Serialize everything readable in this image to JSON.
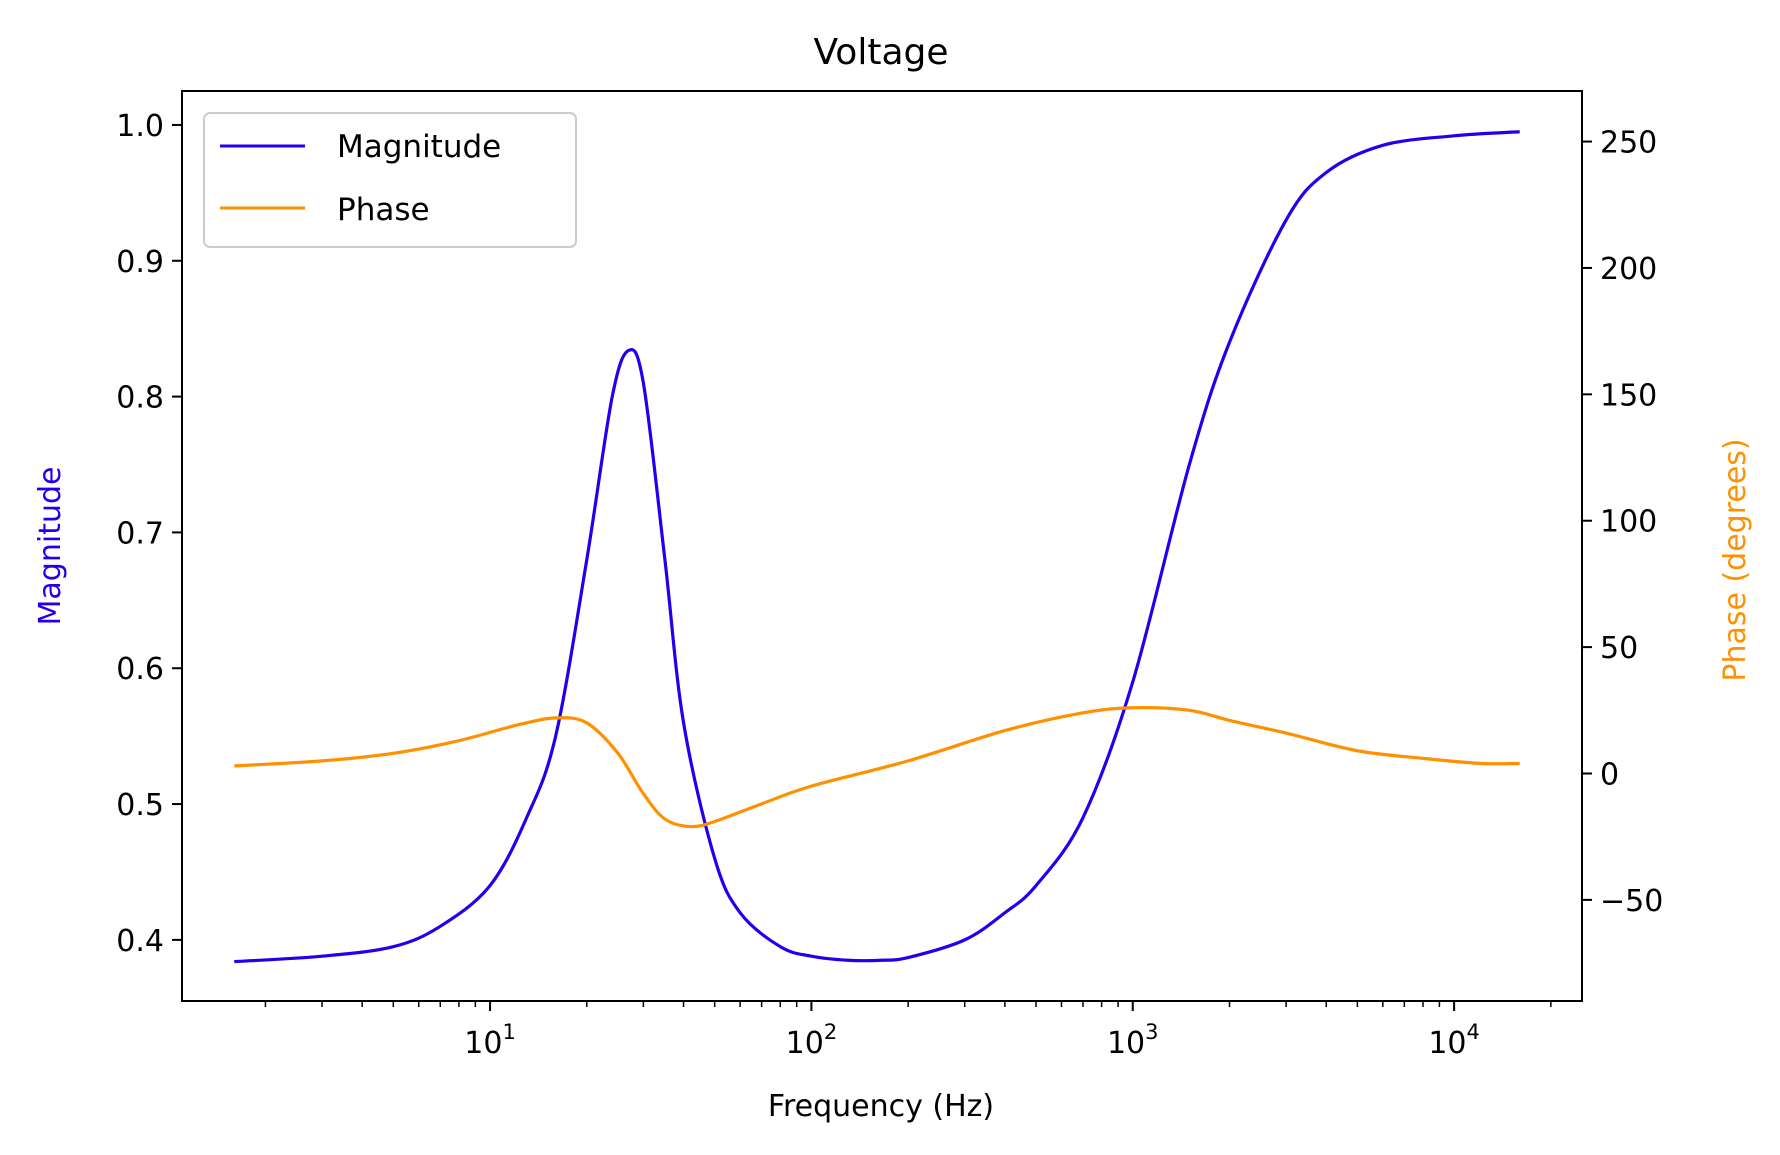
{
  "chart_data": {
    "type": "line",
    "title": "Voltage",
    "xlabel": "Frequency (Hz)",
    "ylabel_left": "Magnitude",
    "ylabel_right": "Phase (degrees)",
    "x_scale": "log",
    "xlim": [
      1.1,
      25000
    ],
    "ylim_left": [
      0.355,
      1.025
    ],
    "ylim_right": [
      -90,
      270
    ],
    "x_tick_labels": [
      {
        "base": "10",
        "exp": "1",
        "value": 10
      },
      {
        "base": "10",
        "exp": "2",
        "value": 100
      },
      {
        "base": "10",
        "exp": "3",
        "value": 1000
      },
      {
        "base": "10",
        "exp": "4",
        "value": 10000
      }
    ],
    "y_left_ticks": [
      {
        "label": "0.4",
        "value": 0.4
      },
      {
        "label": "0.5",
        "value": 0.5
      },
      {
        "label": "0.6",
        "value": 0.6
      },
      {
        "label": "0.7",
        "value": 0.7
      },
      {
        "label": "0.8",
        "value": 0.8
      },
      {
        "label": "0.9",
        "value": 0.9
      },
      {
        "label": "1.0",
        "value": 1.0
      }
    ],
    "y_right_ticks": [
      {
        "label": "−50",
        "value": -50
      },
      {
        "label": "0",
        "value": 0
      },
      {
        "label": "50",
        "value": 50
      },
      {
        "label": "100",
        "value": 100
      },
      {
        "label": "150",
        "value": 150
      },
      {
        "label": "200",
        "value": 200
      },
      {
        "label": "250",
        "value": 250
      }
    ],
    "legend_position": "top-left",
    "grid": false,
    "series": [
      {
        "name": "Magnitude",
        "axis": "left",
        "color": "#2200ee",
        "x": [
          1.6,
          3,
          5,
          7,
          10,
          13,
          16,
          20,
          24,
          27,
          30,
          35,
          40,
          50,
          60,
          80,
          100,
          130,
          165,
          200,
          300,
          400,
          500,
          700,
          1000,
          1500,
          2000,
          3000,
          4000,
          6000,
          10000,
          16000
        ],
        "y": [
          0.384,
          0.388,
          0.395,
          0.41,
          0.44,
          0.49,
          0.55,
          0.68,
          0.8,
          0.834,
          0.81,
          0.68,
          0.56,
          0.46,
          0.42,
          0.395,
          0.388,
          0.385,
          0.385,
          0.387,
          0.4,
          0.42,
          0.44,
          0.49,
          0.59,
          0.75,
          0.84,
          0.93,
          0.965,
          0.985,
          0.992,
          0.995
        ]
      },
      {
        "name": "Phase",
        "axis": "right",
        "color": "#ff9000",
        "x": [
          1.6,
          3,
          5,
          8,
          12,
          16,
          20,
          25,
          30,
          35,
          42,
          50,
          70,
          100,
          200,
          400,
          700,
          1000,
          1500,
          2000,
          3000,
          5000,
          8000,
          12000,
          16000
        ],
        "y": [
          3,
          5,
          8,
          13,
          19,
          22,
          20,
          8,
          -8,
          -18,
          -21,
          -19,
          -12,
          -5,
          5,
          17,
          24,
          26,
          25,
          21,
          16,
          9,
          6,
          4,
          4
        ]
      }
    ]
  }
}
